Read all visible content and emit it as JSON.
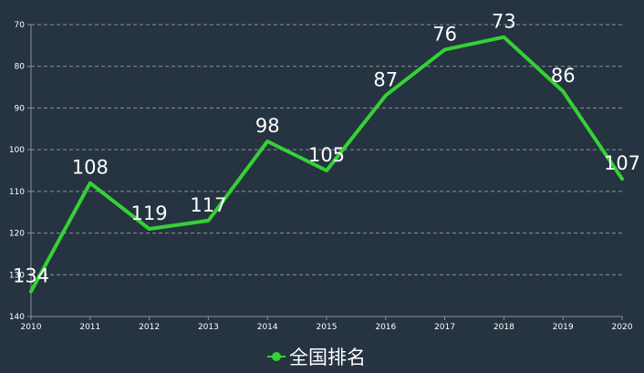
{
  "chart_data": {
    "type": "line",
    "x": [
      "2010",
      "2011",
      "2012",
      "2013",
      "2014",
      "2015",
      "2016",
      "2017",
      "2018",
      "2019",
      "2020"
    ],
    "series": [
      {
        "name": "全国排名",
        "values": [
          134,
          108,
          119,
          117,
          98,
          105,
          87,
          76,
          73,
          86,
          107
        ],
        "color": "#35d135"
      }
    ],
    "y_ticks": [
      70,
      80,
      90,
      100,
      110,
      120,
      130,
      140
    ],
    "ylim": [
      70,
      140
    ],
    "y_inverted": true,
    "grid": true,
    "legend_position": "bottom-center",
    "colors": {
      "background": "#263341",
      "line": "#35d135",
      "grid": "#8a939c",
      "text": "#ffffff"
    }
  }
}
